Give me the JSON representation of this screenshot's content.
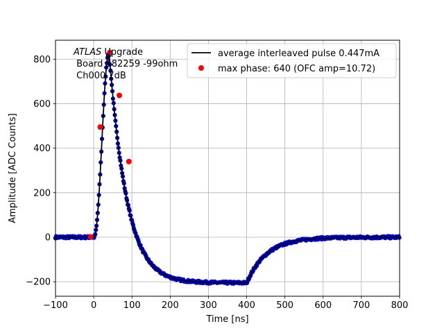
{
  "chart_data": {
    "type": "scatter",
    "xlabel": "Time [ns]",
    "ylabel": "Amplitude [ADC Counts]",
    "xlim": [
      -100,
      800
    ],
    "ylim": [
      -265,
      885
    ],
    "x_ticks": [
      -100,
      0,
      100,
      200,
      300,
      400,
      500,
      600,
      700,
      800
    ],
    "x_tick_labels": [
      "−100",
      "0",
      "100",
      "200",
      "300",
      "400",
      "500",
      "600",
      "700",
      "800"
    ],
    "y_ticks": [
      -200,
      0,
      200,
      400,
      600,
      800
    ],
    "y_tick_labels": [
      "−200",
      "0",
      "200",
      "400",
      "600",
      "800"
    ],
    "grid": true,
    "legend_position": "top-right",
    "annotation": {
      "line1_italic": "ATLAS",
      "line1_rest": " Upgrade",
      "line2": " Board 182259 -99ohm",
      "line3": " Ch000 7dB"
    },
    "pulse_shape": {
      "baseline": 0,
      "rise_start": 0,
      "peak_time": 40,
      "peak_value": 830,
      "decay_tau": 36,
      "undershoot_level": -205,
      "undershoot_tau": 48,
      "recovery_start": 400,
      "recovery_tau": 52
    },
    "series": [
      {
        "name": "average interleaved pulse 0.447mA",
        "kind": "line",
        "color": "#000000"
      },
      {
        "kind": "scatter",
        "color": "#0000cc",
        "x_range": [
          -100,
          800
        ],
        "x_step": 1.6
      },
      {
        "name": "max phase: 640 (OFC amp=10.72)",
        "kind": "scatter",
        "color": "#ff0000",
        "x": [
          -8,
          17,
          42,
          67,
          92
        ],
        "y": [
          2,
          495,
          830,
          637,
          340
        ]
      }
    ]
  }
}
